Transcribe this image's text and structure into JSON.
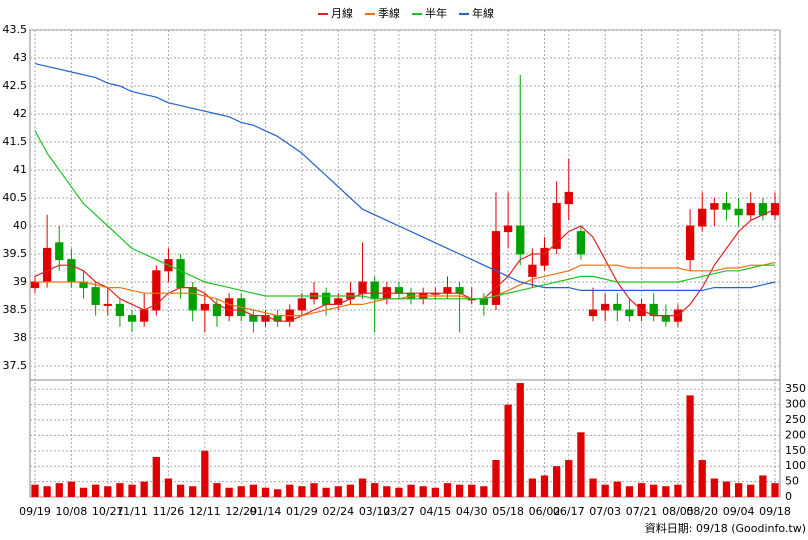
{
  "chart_data": {
    "type": "candlestick",
    "legend": [
      "月線",
      "季線",
      "半年",
      "年線"
    ],
    "candles": [
      [
        38.9,
        39.1,
        38.8,
        39.0
      ],
      [
        39.0,
        40.2,
        38.9,
        39.6
      ],
      [
        39.7,
        40.0,
        39.2,
        39.4
      ],
      [
        39.4,
        39.6,
        38.9,
        39.0
      ],
      [
        39.0,
        39.2,
        38.7,
        38.9
      ],
      [
        38.9,
        39.0,
        38.4,
        38.6
      ],
      [
        38.6,
        38.9,
        38.4,
        38.6
      ],
      [
        38.6,
        38.7,
        38.2,
        38.4
      ],
      [
        38.4,
        38.5,
        38.1,
        38.3
      ],
      [
        38.3,
        38.8,
        38.2,
        38.5
      ],
      [
        38.5,
        39.3,
        38.4,
        39.2
      ],
      [
        39.2,
        39.6,
        39.0,
        39.4
      ],
      [
        39.4,
        39.5,
        38.7,
        38.9
      ],
      [
        38.9,
        39.0,
        38.3,
        38.5
      ],
      [
        38.5,
        38.8,
        38.1,
        38.6
      ],
      [
        38.6,
        38.7,
        38.2,
        38.4
      ],
      [
        38.4,
        38.8,
        38.3,
        38.7
      ],
      [
        38.7,
        38.8,
        38.3,
        38.4
      ],
      [
        38.4,
        38.5,
        38.1,
        38.3
      ],
      [
        38.3,
        38.5,
        38.2,
        38.4
      ],
      [
        38.4,
        38.5,
        38.2,
        38.3
      ],
      [
        38.3,
        38.6,
        38.2,
        38.5
      ],
      [
        38.5,
        38.8,
        38.4,
        38.7
      ],
      [
        38.7,
        39.0,
        38.6,
        38.8
      ],
      [
        38.8,
        38.9,
        38.4,
        38.6
      ],
      [
        38.6,
        38.8,
        38.5,
        38.7
      ],
      [
        38.7,
        39.0,
        38.6,
        38.8
      ],
      [
        38.8,
        39.7,
        38.7,
        39.0
      ],
      [
        39.0,
        39.1,
        38.1,
        38.7
      ],
      [
        38.7,
        39.0,
        38.6,
        38.9
      ],
      [
        38.9,
        39.0,
        38.7,
        38.8
      ],
      [
        38.8,
        38.9,
        38.6,
        38.7
      ],
      [
        38.7,
        38.9,
        38.6,
        38.8
      ],
      [
        38.8,
        38.9,
        38.7,
        38.8
      ],
      [
        38.8,
        39.1,
        38.7,
        38.9
      ],
      [
        38.9,
        39.0,
        38.1,
        38.8
      ],
      [
        38.7,
        38.9,
        38.6,
        38.7
      ],
      [
        38.7,
        38.8,
        38.4,
        38.6
      ],
      [
        38.6,
        40.6,
        38.5,
        39.9
      ],
      [
        39.9,
        40.6,
        39.6,
        40.0
      ],
      [
        40.0,
        42.7,
        39.3,
        39.5
      ],
      [
        39.1,
        39.6,
        38.9,
        39.3
      ],
      [
        39.3,
        39.8,
        39.2,
        39.6
      ],
      [
        39.6,
        40.8,
        39.5,
        40.4
      ],
      [
        40.4,
        41.2,
        40.1,
        40.6
      ],
      [
        39.9,
        40.0,
        39.4,
        39.5
      ],
      [
        38.4,
        38.9,
        38.3,
        38.5
      ],
      [
        38.5,
        38.8,
        38.3,
        38.6
      ],
      [
        38.6,
        38.8,
        38.3,
        38.5
      ],
      [
        38.5,
        38.7,
        38.3,
        38.4
      ],
      [
        38.4,
        38.7,
        38.3,
        38.6
      ],
      [
        38.6,
        38.8,
        38.3,
        38.4
      ],
      [
        38.4,
        38.6,
        38.2,
        38.3
      ],
      [
        38.3,
        38.6,
        38.2,
        38.5
      ],
      [
        39.4,
        40.3,
        39.2,
        40.0
      ],
      [
        40.0,
        40.6,
        39.9,
        40.3
      ],
      [
        40.3,
        40.5,
        40.0,
        40.4
      ],
      [
        40.4,
        40.6,
        40.1,
        40.3
      ],
      [
        40.3,
        40.5,
        40.0,
        40.2
      ],
      [
        40.2,
        40.6,
        40.1,
        40.4
      ],
      [
        40.4,
        40.5,
        40.1,
        40.2
      ],
      [
        40.2,
        40.6,
        40.1,
        40.4
      ]
    ],
    "up_color": "#e00000",
    "down_color": "#00a000",
    "series": [
      {
        "name": "月線",
        "color": "#e02020",
        "values": [
          39.1,
          39.2,
          39.3,
          39.3,
          39.2,
          39.0,
          38.9,
          38.7,
          38.6,
          38.5,
          38.6,
          38.8,
          38.9,
          38.9,
          38.8,
          38.6,
          38.5,
          38.5,
          38.4,
          38.4,
          38.3,
          38.3,
          38.4,
          38.5,
          38.6,
          38.6,
          38.7,
          38.8,
          38.8,
          38.8,
          38.8,
          38.8,
          38.8,
          38.8,
          38.8,
          38.8,
          38.7,
          38.7,
          38.9,
          39.1,
          39.4,
          39.5,
          39.5,
          39.7,
          39.9,
          40.0,
          39.8,
          39.4,
          39.0,
          38.7,
          38.5,
          38.4,
          38.4,
          38.4,
          38.6,
          38.9,
          39.3,
          39.6,
          39.9,
          40.1,
          40.2,
          40.3
        ]
      },
      {
        "name": "季線",
        "color": "#f07010",
        "values": [
          39.0,
          39.0,
          39.0,
          39.0,
          39.0,
          38.95,
          38.9,
          38.9,
          38.85,
          38.8,
          38.8,
          38.8,
          38.8,
          38.8,
          38.75,
          38.7,
          38.6,
          38.55,
          38.5,
          38.45,
          38.4,
          38.4,
          38.4,
          38.45,
          38.5,
          38.55,
          38.6,
          38.6,
          38.65,
          38.7,
          38.7,
          38.75,
          38.75,
          38.75,
          38.75,
          38.75,
          38.7,
          38.7,
          38.75,
          38.85,
          38.95,
          39.05,
          39.1,
          39.15,
          39.2,
          39.3,
          39.3,
          39.3,
          39.3,
          39.25,
          39.25,
          39.25,
          39.25,
          39.25,
          39.2,
          39.2,
          39.2,
          39.25,
          39.25,
          39.3,
          39.3,
          39.35
        ]
      },
      {
        "name": "半年",
        "color": "#20c020",
        "values": [
          41.7,
          41.3,
          41.0,
          40.7,
          40.4,
          40.2,
          40.0,
          39.8,
          39.6,
          39.5,
          39.4,
          39.3,
          39.2,
          39.1,
          39.0,
          38.95,
          38.9,
          38.85,
          38.8,
          38.75,
          38.75,
          38.75,
          38.75,
          38.75,
          38.75,
          38.75,
          38.75,
          38.75,
          38.7,
          38.7,
          38.7,
          38.7,
          38.7,
          38.7,
          38.7,
          38.7,
          38.7,
          38.7,
          38.75,
          38.8,
          38.85,
          38.9,
          38.95,
          39.0,
          39.05,
          39.1,
          39.1,
          39.05,
          39.0,
          39.0,
          39.0,
          39.0,
          39.0,
          39.0,
          39.05,
          39.1,
          39.15,
          39.2,
          39.2,
          39.25,
          39.3,
          39.3
        ]
      },
      {
        "name": "年線",
        "color": "#2060d0",
        "values": [
          42.9,
          42.85,
          42.8,
          42.75,
          42.7,
          42.65,
          42.55,
          42.5,
          42.4,
          42.35,
          42.3,
          42.2,
          42.15,
          42.1,
          42.05,
          42.0,
          41.95,
          41.85,
          41.8,
          41.7,
          41.6,
          41.45,
          41.3,
          41.1,
          40.9,
          40.7,
          40.5,
          40.3,
          40.2,
          40.1,
          40.0,
          39.9,
          39.8,
          39.7,
          39.6,
          39.5,
          39.4,
          39.3,
          39.2,
          39.1,
          39.0,
          38.95,
          38.9,
          38.9,
          38.9,
          38.85,
          38.85,
          38.85,
          38.85,
          38.85,
          38.85,
          38.85,
          38.85,
          38.85,
          38.85,
          38.85,
          38.9,
          38.9,
          38.9,
          38.9,
          38.95,
          39.0
        ]
      }
    ],
    "ylim": [
      37.25,
      43.5
    ],
    "yticks": [
      37.5,
      38,
      38.5,
      39,
      39.5,
      40,
      40.5,
      41,
      41.5,
      42,
      42.5,
      43,
      43.5
    ],
    "volume": {
      "color": "#e00000",
      "values": [
        40,
        35,
        45,
        50,
        30,
        40,
        35,
        45,
        40,
        50,
        130,
        60,
        40,
        35,
        150,
        45,
        30,
        35,
        40,
        30,
        25,
        40,
        35,
        45,
        30,
        35,
        40,
        60,
        45,
        35,
        30,
        40,
        35,
        30,
        45,
        40,
        40,
        35,
        120,
        300,
        370,
        60,
        70,
        100,
        120,
        210,
        60,
        40,
        50,
        35,
        45,
        40,
        35,
        40,
        330,
        120,
        60,
        50,
        45,
        40,
        70,
        45
      ],
      "ylim": [
        0,
        380
      ],
      "yticks": [
        0,
        50,
        100,
        150,
        200,
        250,
        300,
        350
      ]
    },
    "xticks": [
      {
        "value": 0,
        "label": "09/19"
      },
      {
        "value": 3,
        "label": "10/08"
      },
      {
        "value": 6,
        "label": "10/27"
      },
      {
        "value": 8,
        "label": "11/11"
      },
      {
        "value": 11,
        "label": "11/26"
      },
      {
        "value": 14,
        "label": "12/11"
      },
      {
        "value": 17,
        "label": "12/29"
      },
      {
        "value": 19,
        "label": "01/14"
      },
      {
        "value": 22,
        "label": "01/29"
      },
      {
        "value": 25,
        "label": "02/24"
      },
      {
        "value": 28,
        "label": "03/12"
      },
      {
        "value": 30,
        "label": "03/27"
      },
      {
        "value": 33,
        "label": "04/15"
      },
      {
        "value": 36,
        "label": "04/30"
      },
      {
        "value": 39,
        "label": "05/18"
      },
      {
        "value": 42,
        "label": "06/02"
      },
      {
        "value": 44,
        "label": "06/17"
      },
      {
        "value": 47,
        "label": "07/03"
      },
      {
        "value": 50,
        "label": "07/21"
      },
      {
        "value": 53,
        "label": "08/05"
      },
      {
        "value": 55,
        "label": "08/20"
      },
      {
        "value": 58,
        "label": "09/04"
      },
      {
        "value": 61,
        "label": "09/18"
      }
    ],
    "grid": true,
    "source": "資料日期: 09/18 (Goodinfo.tw)"
  }
}
